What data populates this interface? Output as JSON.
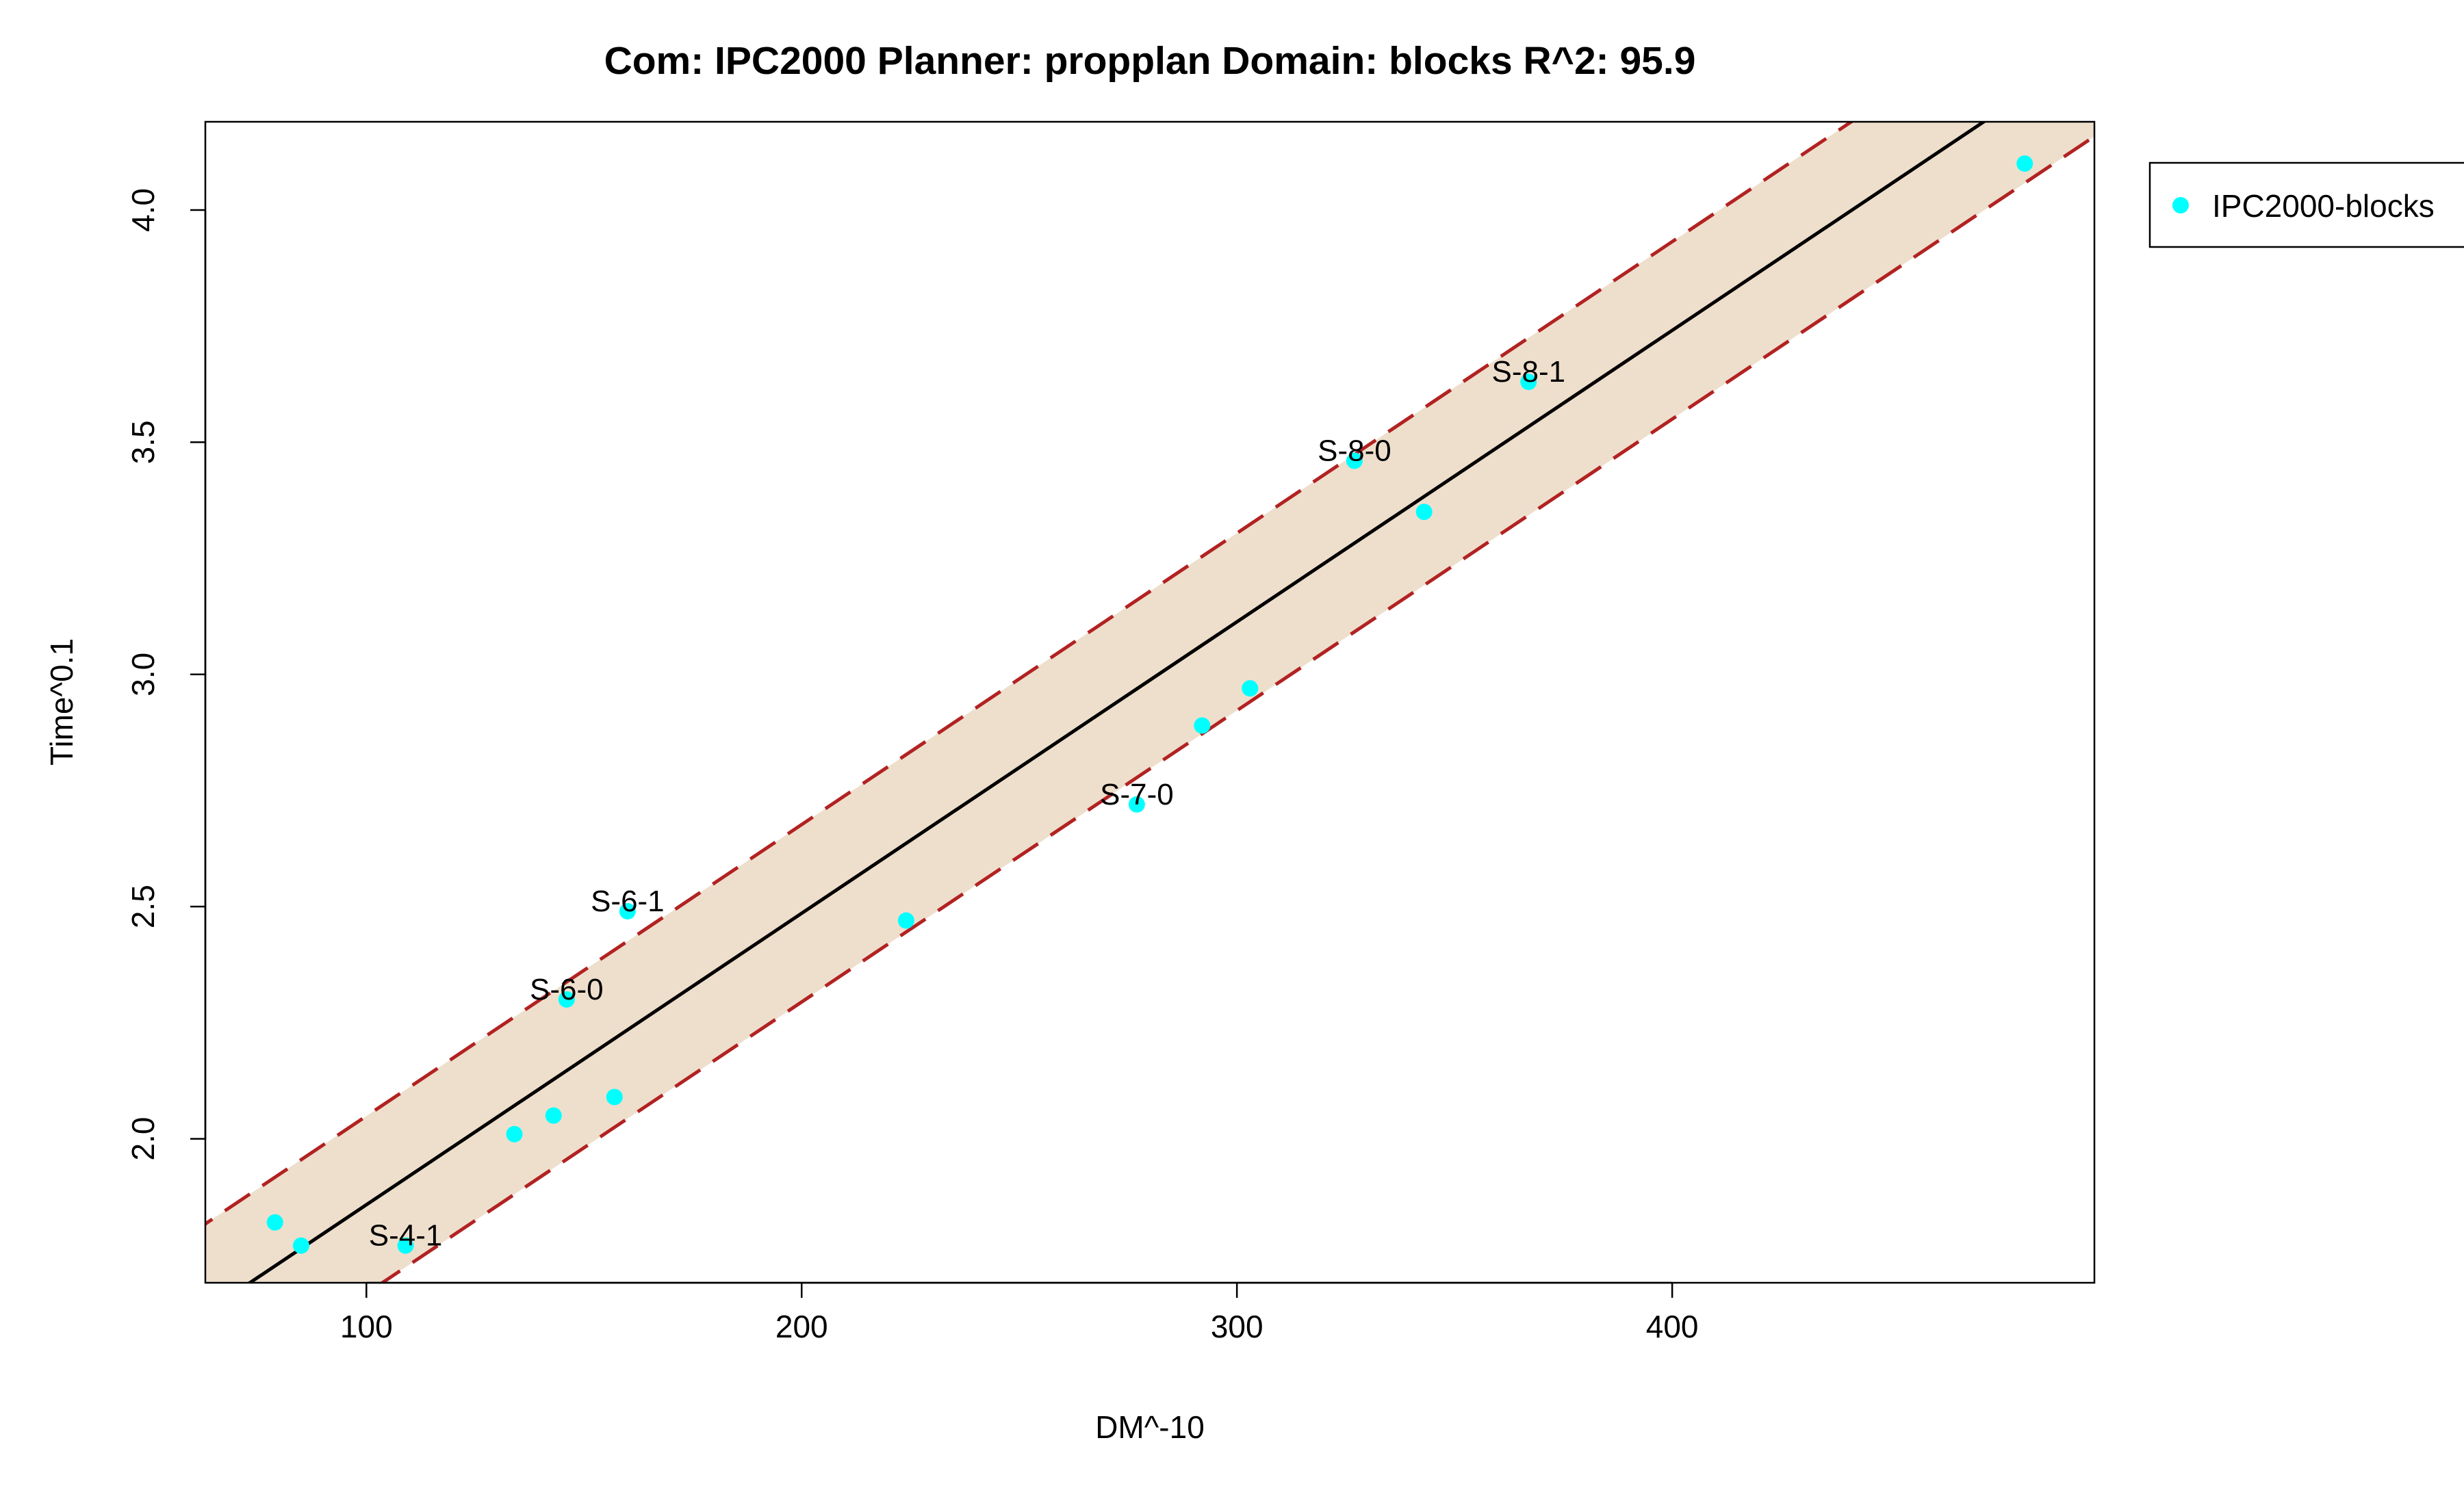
{
  "chart_data": {
    "type": "scatter",
    "title": "Com: IPC2000 Planner: propplan Domain: blocks R^2: 95.9",
    "xlabel": "DM^-10",
    "ylabel": "Time^0.1",
    "xlim": [
      63,
      497
    ],
    "ylim": [
      1.69,
      4.19
    ],
    "xticks": [
      100,
      200,
      300,
      400
    ],
    "yticks": [
      2.0,
      2.5,
      3.0,
      3.5,
      4.0
    ],
    "xtick_labels": [
      "100",
      "200",
      "300",
      "400"
    ],
    "ytick_labels": [
      "2.0",
      "2.5",
      "3.0",
      "3.5",
      "4.0"
    ],
    "grid": false,
    "legend_position": "outside-top-right",
    "fit_line": {
      "slope": 0.006276,
      "intercept": 1.2304,
      "color": "#000000"
    },
    "band": {
      "half_width": 0.191,
      "fill_color": "#eedfcc",
      "line_color": "#b22222",
      "style": "dashed"
    },
    "series": [
      {
        "name": "IPC2000-blocks",
        "color": "#00ffff",
        "points": [
          {
            "x": 79,
            "y": 1.82,
            "label": ""
          },
          {
            "x": 85,
            "y": 1.77,
            "label": ""
          },
          {
            "x": 109,
            "y": 1.77,
            "label": "S-4-1"
          },
          {
            "x": 134,
            "y": 2.01,
            "label": ""
          },
          {
            "x": 143,
            "y": 2.05,
            "label": ""
          },
          {
            "x": 146,
            "y": 2.3,
            "label": "S-6-0"
          },
          {
            "x": 157,
            "y": 2.09,
            "label": ""
          },
          {
            "x": 160,
            "y": 2.49,
            "label": "S-6-1"
          },
          {
            "x": 224,
            "y": 2.47,
            "label": ""
          },
          {
            "x": 277,
            "y": 2.72,
            "label": "S-7-0"
          },
          {
            "x": 292,
            "y": 2.89,
            "label": ""
          },
          {
            "x": 303,
            "y": 2.97,
            "label": ""
          },
          {
            "x": 327,
            "y": 3.46,
            "label": "S-8-0"
          },
          {
            "x": 343,
            "y": 3.35,
            "label": ""
          },
          {
            "x": 367,
            "y": 3.63,
            "label": "S-8-1"
          },
          {
            "x": 481,
            "y": 4.1,
            "label": ""
          }
        ]
      }
    ]
  }
}
